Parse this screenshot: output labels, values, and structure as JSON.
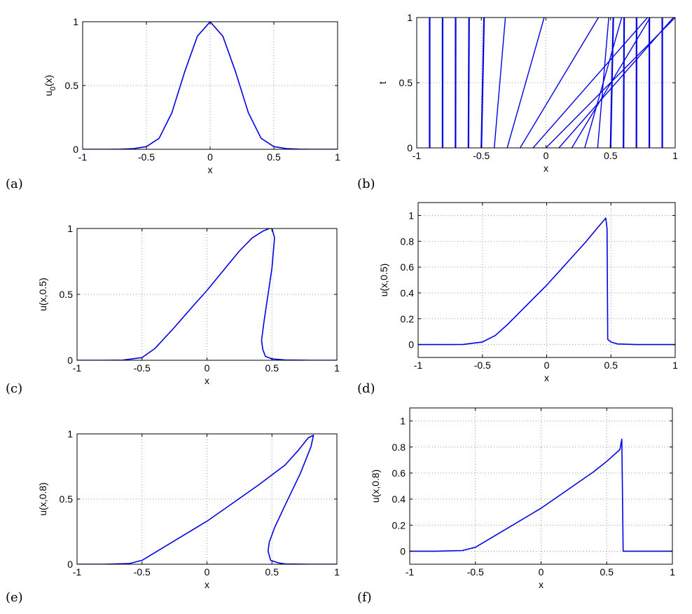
{
  "panel_labels": [
    "(a)",
    "(b)",
    "(c)",
    "(d)",
    "(e)",
    "(f)"
  ],
  "colors": {
    "line": "#0000e6",
    "grid": "#9a9a9a",
    "axes": "#000000"
  },
  "chart_data": [
    {
      "type": "line",
      "panel": "(a)",
      "xlabel": "x",
      "ylabel_parts": [
        "u",
        "0",
        "(x)"
      ],
      "xlim": [
        -1,
        1
      ],
      "ylim": [
        0,
        1
      ],
      "xticks": [
        -1,
        -0.5,
        0,
        0.5,
        1
      ],
      "xtick_labels": [
        "-1",
        "-0.5",
        "0",
        "0.5",
        "1"
      ],
      "yticks": [
        0,
        0.5,
        1
      ],
      "ytick_labels": [
        "0",
        "0.5",
        "1"
      ],
      "grid": true,
      "series": [
        {
          "x": [
            -1,
            -0.8,
            -0.7,
            -0.6,
            -0.5,
            -0.4,
            -0.3,
            -0.2,
            -0.1,
            0,
            0.1,
            0.2,
            0.3,
            0.4,
            0.5,
            0.6,
            0.7,
            0.8,
            1
          ],
          "y": [
            0,
            0,
            0.001,
            0.005,
            0.021,
            0.086,
            0.286,
            0.606,
            0.886,
            1,
            0.886,
            0.606,
            0.286,
            0.086,
            0.021,
            0.005,
            0.001,
            0,
            0
          ]
        }
      ]
    },
    {
      "type": "line",
      "panel": "(b)",
      "xlabel": "x",
      "ylabel": "t",
      "xlim": [
        -1,
        1
      ],
      "ylim": [
        0,
        1
      ],
      "xticks": [
        -1,
        -0.5,
        0,
        0.5,
        1
      ],
      "xtick_labels": [
        "-1",
        "-0.5",
        "0",
        "0.5",
        "1"
      ],
      "yticks": [
        0,
        0.5,
        1
      ],
      "ytick_labels": [
        "0",
        "0.5",
        "1"
      ],
      "grid": true,
      "characteristics": [
        {
          "x0": -0.9,
          "speed": 0.0
        },
        {
          "x0": -0.8,
          "speed": 0.0
        },
        {
          "x0": -0.7,
          "speed": 0.001
        },
        {
          "x0": -0.6,
          "speed": 0.005
        },
        {
          "x0": -0.5,
          "speed": 0.021
        },
        {
          "x0": -0.4,
          "speed": 0.086
        },
        {
          "x0": -0.3,
          "speed": 0.286
        },
        {
          "x0": -0.2,
          "speed": 0.606
        },
        {
          "x0": -0.1,
          "speed": 0.886
        },
        {
          "x0": 0.0,
          "speed": 1.0
        },
        {
          "x0": 0.1,
          "speed": 0.886
        },
        {
          "x0": 0.2,
          "speed": 0.606
        },
        {
          "x0": 0.3,
          "speed": 0.286
        },
        {
          "x0": 0.4,
          "speed": 0.086
        },
        {
          "x0": 0.5,
          "speed": 0.021
        },
        {
          "x0": 0.6,
          "speed": 0.005
        },
        {
          "x0": 0.7,
          "speed": 0.001
        },
        {
          "x0": 0.8,
          "speed": 0.0
        },
        {
          "x0": 0.9,
          "speed": 0.0
        }
      ]
    },
    {
      "type": "line",
      "panel": "(c)",
      "xlabel": "x",
      "ylabel": "u(x,0.5)",
      "xlim": [
        -1,
        1
      ],
      "ylim": [
        0,
        1
      ],
      "xticks": [
        -1,
        -0.5,
        0,
        0.5,
        1
      ],
      "xtick_labels": [
        "-1",
        "-0.5",
        "0",
        "0.5",
        "1"
      ],
      "yticks": [
        0,
        0.5,
        1
      ],
      "ytick_labels": [
        "0",
        "0.5",
        "1"
      ],
      "grid": true,
      "series": [
        {
          "x": [
            -1,
            -0.8,
            -0.65,
            -0.5,
            -0.4,
            -0.25,
            -0.1,
            0.0,
            0.15,
            0.25,
            0.35,
            0.43,
            0.48,
            0.5,
            0.52,
            0.5,
            0.47,
            0.44,
            0.42,
            0.43,
            0.45,
            0.5,
            0.6,
            0.8,
            1
          ],
          "y": [
            0,
            0,
            0.001,
            0.02,
            0.09,
            0.25,
            0.42,
            0.53,
            0.71,
            0.83,
            0.93,
            0.98,
            1.0,
            1.0,
            0.93,
            0.7,
            0.5,
            0.3,
            0.15,
            0.08,
            0.03,
            0.01,
            0.002,
            0,
            0
          ]
        }
      ]
    },
    {
      "type": "line",
      "panel": "(d)",
      "xlabel": "x",
      "ylabel": "u(x,0.5)",
      "xlim": [
        -1,
        1
      ],
      "ylim": [
        -0.1,
        1.1
      ],
      "xticks": [
        -1,
        -0.5,
        0,
        0.5,
        1
      ],
      "xtick_labels": [
        "-1",
        "-0.5",
        "0",
        "0.5",
        "1"
      ],
      "yticks": [
        0,
        0.2,
        0.4,
        0.6,
        0.8,
        1
      ],
      "ytick_labels": [
        "0",
        "0.2",
        "0.4",
        "0.6",
        "0.8",
        "1"
      ],
      "grid": true,
      "series": [
        {
          "x": [
            -1,
            -0.8,
            -0.65,
            -0.5,
            -0.4,
            -0.3,
            -0.2,
            -0.1,
            0.0,
            0.1,
            0.2,
            0.3,
            0.4,
            0.46,
            0.47,
            0.475,
            0.5,
            0.55,
            0.7,
            1
          ],
          "y": [
            0,
            0,
            0.001,
            0.02,
            0.07,
            0.16,
            0.26,
            0.36,
            0.46,
            0.57,
            0.68,
            0.79,
            0.91,
            0.98,
            0.9,
            0.04,
            0.02,
            0.005,
            0,
            0
          ]
        }
      ]
    },
    {
      "type": "line",
      "panel": "(e)",
      "xlabel": "x",
      "ylabel": "u(x,0.8)",
      "xlim": [
        -1,
        1
      ],
      "ylim": [
        0,
        1
      ],
      "xticks": [
        -1,
        -0.5,
        0,
        0.5,
        1
      ],
      "xtick_labels": [
        "-1",
        "-0.5",
        "0",
        "0.5",
        "1"
      ],
      "yticks": [
        0,
        0.5,
        1
      ],
      "ytick_labels": [
        "0",
        "0.5",
        "1"
      ],
      "grid": true,
      "series": [
        {
          "x": [
            -1,
            -0.8,
            -0.6,
            -0.5,
            -0.4,
            -0.2,
            0.0,
            0.2,
            0.4,
            0.6,
            0.7,
            0.78,
            0.82,
            0.8,
            0.72,
            0.6,
            0.52,
            0.48,
            0.47,
            0.49,
            0.55,
            0.6,
            0.8,
            1
          ],
          "y": [
            0,
            0,
            0.005,
            0.03,
            0.09,
            0.21,
            0.33,
            0.47,
            0.61,
            0.76,
            0.87,
            0.97,
            0.99,
            0.9,
            0.7,
            0.45,
            0.28,
            0.17,
            0.1,
            0.03,
            0.01,
            0.002,
            0,
            0
          ]
        }
      ]
    },
    {
      "type": "line",
      "panel": "(f)",
      "xlabel": "x",
      "ylabel": "u(x,0.8)",
      "xlim": [
        -1,
        1
      ],
      "ylim": [
        -0.1,
        1.1
      ],
      "xticks": [
        -1,
        -0.5,
        0,
        0.5,
        1
      ],
      "xtick_labels": [
        "-1",
        "-0.5",
        "0",
        "0.5",
        "1"
      ],
      "yticks": [
        0,
        0.2,
        0.4,
        0.6,
        0.8,
        1
      ],
      "ytick_labels": [
        "0",
        "0.2",
        "0.4",
        "0.6",
        "0.8",
        "1"
      ],
      "grid": true,
      "series": [
        {
          "x": [
            -1,
            -0.8,
            -0.6,
            -0.5,
            -0.4,
            -0.2,
            0.0,
            0.2,
            0.4,
            0.5,
            0.6,
            0.615,
            0.625,
            0.65,
            0.8,
            1
          ],
          "y": [
            0,
            0,
            0.005,
            0.03,
            0.09,
            0.21,
            0.33,
            0.47,
            0.61,
            0.69,
            0.78,
            0.86,
            0.0,
            0.0,
            0,
            0
          ]
        }
      ]
    }
  ]
}
